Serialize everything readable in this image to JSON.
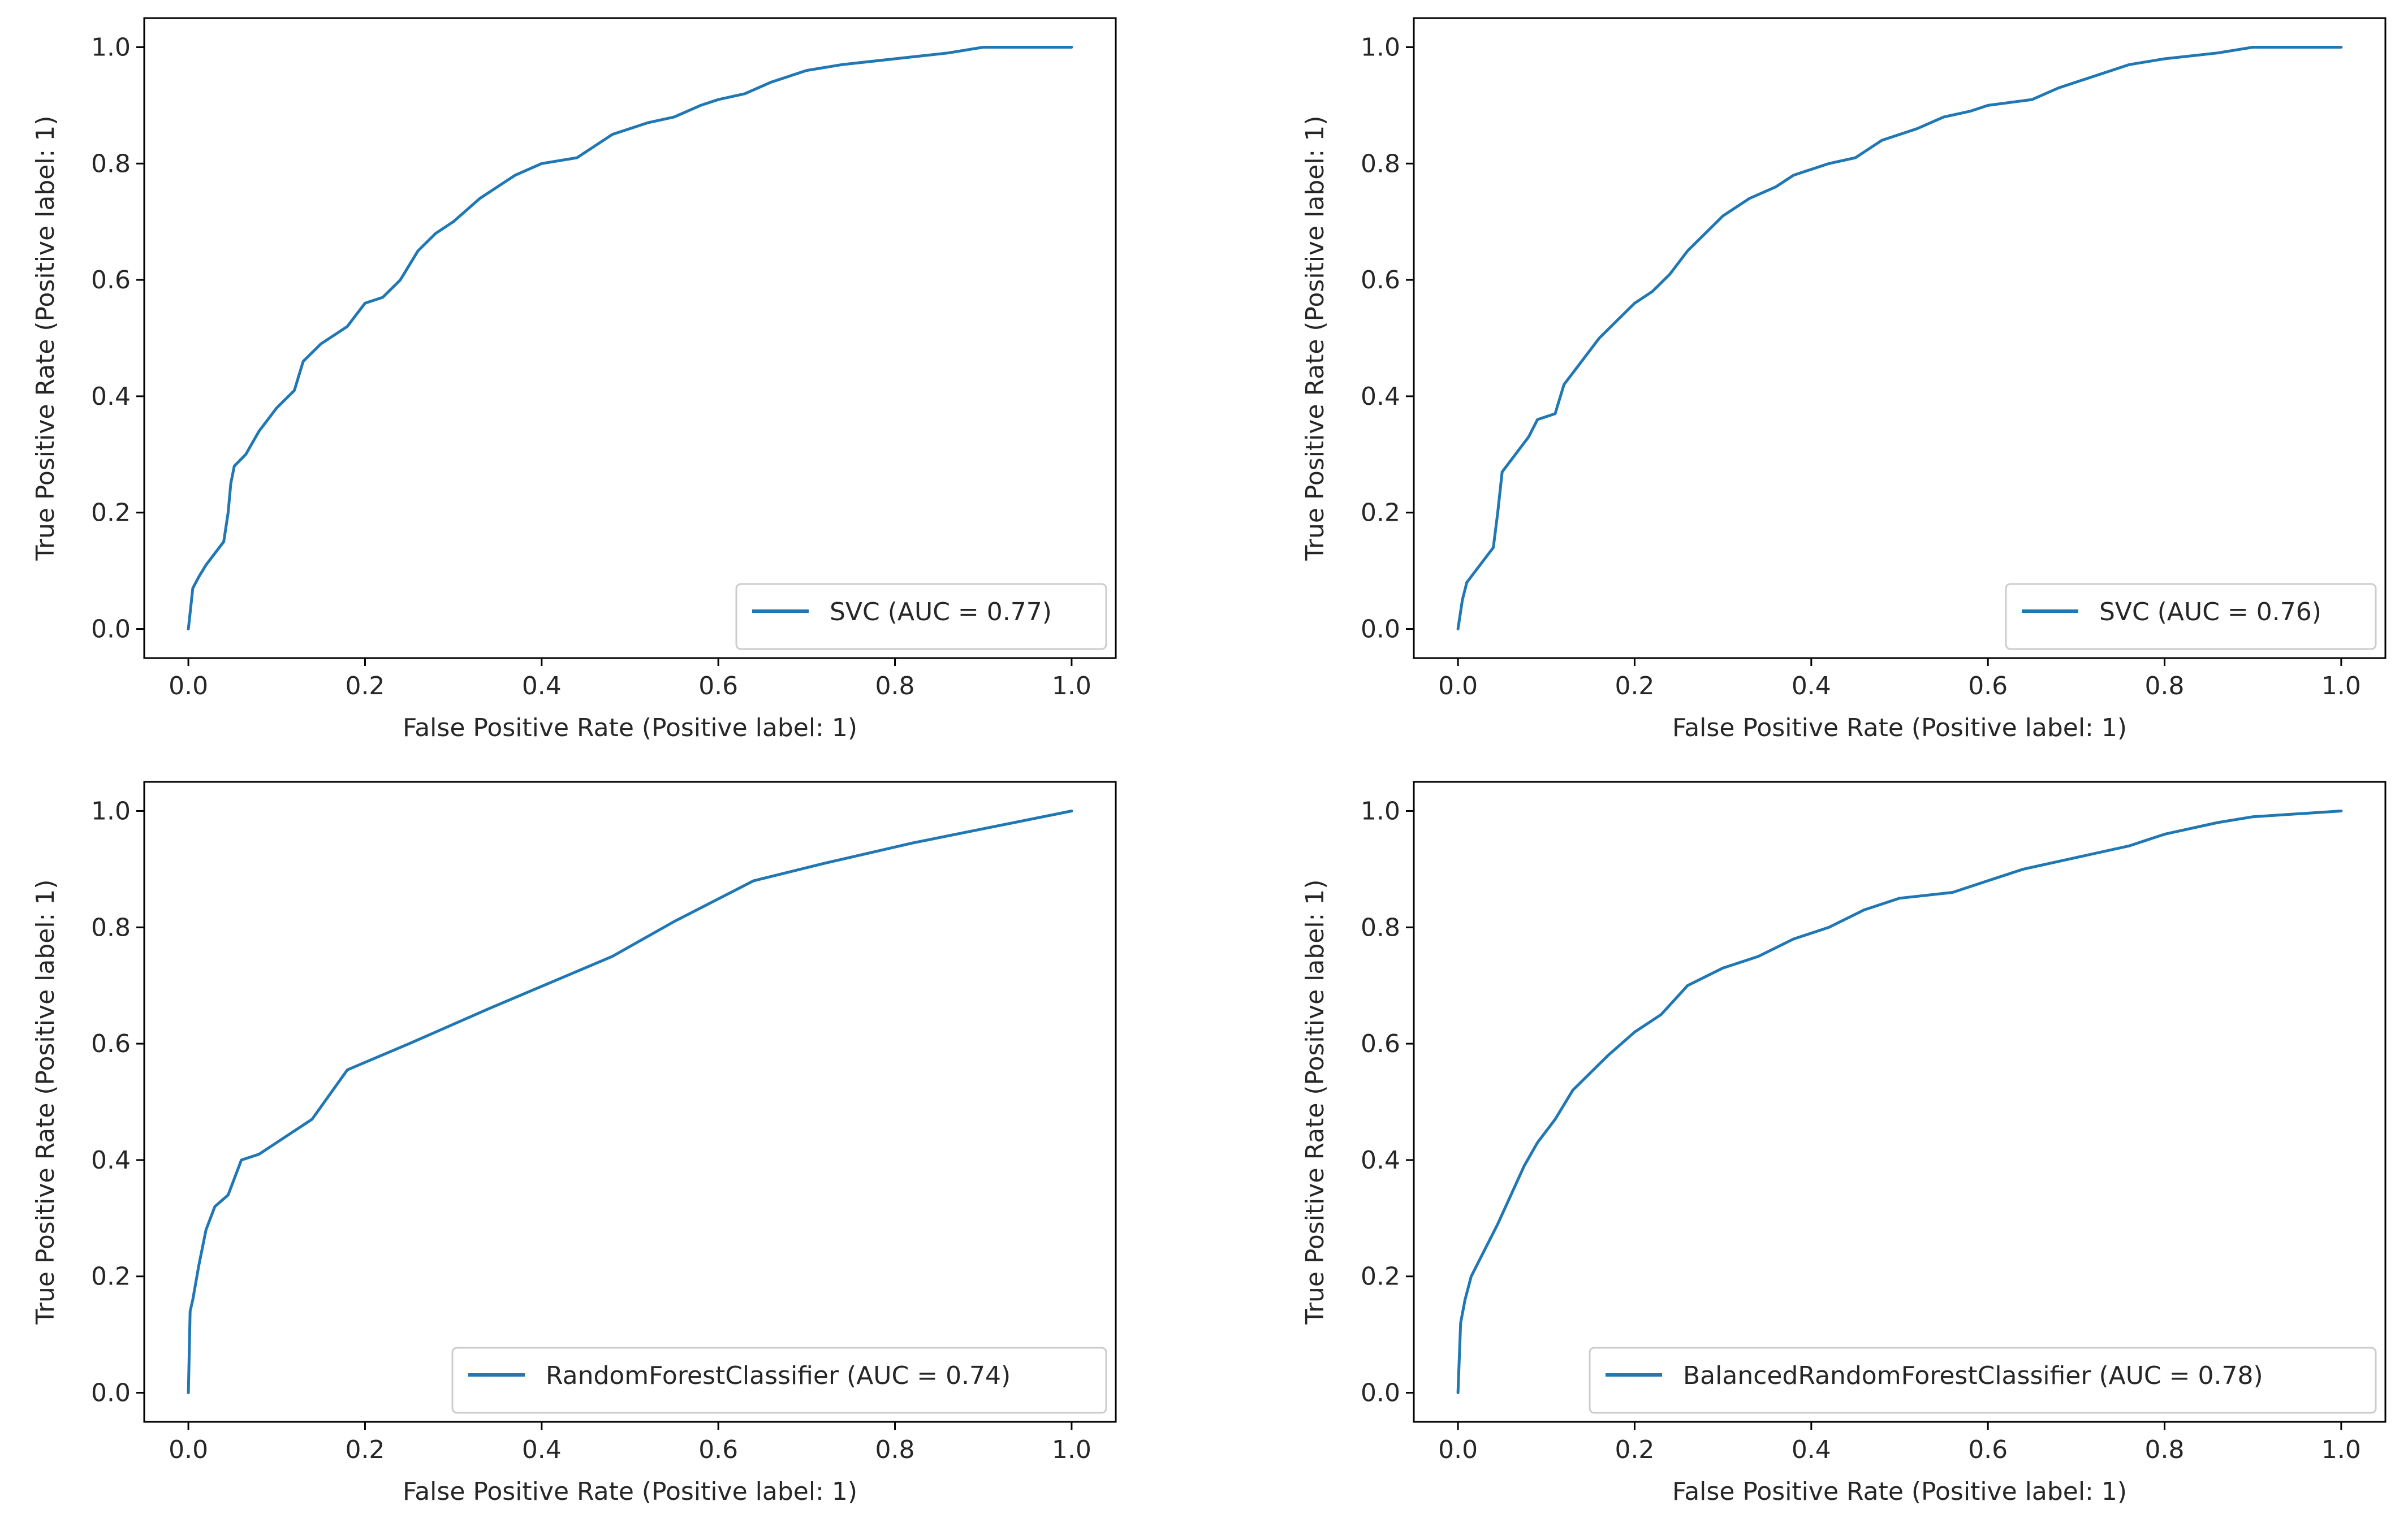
{
  "colors": {
    "series": "#1f77b4"
  },
  "chart_data": [
    {
      "type": "line",
      "xlabel": "False Positive Rate (Positive label: 1)",
      "ylabel": "True Positive Rate (Positive label: 1)",
      "xlim": [
        -0.05,
        1.05
      ],
      "ylim": [
        -0.05,
        1.05
      ],
      "xticks": [
        "0.0",
        "0.2",
        "0.4",
        "0.6",
        "0.8",
        "1.0"
      ],
      "yticks": [
        "0.0",
        "0.2",
        "0.4",
        "0.6",
        "0.8",
        "1.0"
      ],
      "legend": "SVC (AUC = 0.77)",
      "legend_loc": "lower-right",
      "series": [
        {
          "name": "SVC",
          "x": [
            0.0,
            0.005,
            0.012,
            0.02,
            0.03,
            0.04,
            0.045,
            0.048,
            0.052,
            0.065,
            0.08,
            0.1,
            0.12,
            0.13,
            0.15,
            0.18,
            0.19,
            0.2,
            0.22,
            0.24,
            0.26,
            0.28,
            0.3,
            0.33,
            0.35,
            0.37,
            0.4,
            0.44,
            0.46,
            0.48,
            0.5,
            0.52,
            0.55,
            0.58,
            0.6,
            0.63,
            0.66,
            0.7,
            0.74,
            0.8,
            0.86,
            0.9,
            1.0
          ],
          "y": [
            0.0,
            0.07,
            0.09,
            0.11,
            0.13,
            0.15,
            0.2,
            0.25,
            0.28,
            0.3,
            0.34,
            0.38,
            0.41,
            0.46,
            0.49,
            0.52,
            0.54,
            0.56,
            0.57,
            0.6,
            0.65,
            0.68,
            0.7,
            0.74,
            0.76,
            0.78,
            0.8,
            0.81,
            0.83,
            0.85,
            0.86,
            0.87,
            0.88,
            0.9,
            0.91,
            0.92,
            0.94,
            0.96,
            0.97,
            0.98,
            0.99,
            1.0,
            1.0
          ]
        }
      ]
    },
    {
      "type": "line",
      "xlabel": "False Positive Rate (Positive label: 1)",
      "ylabel": "True Positive Rate (Positive label: 1)",
      "xlim": [
        -0.05,
        1.05
      ],
      "ylim": [
        -0.05,
        1.05
      ],
      "xticks": [
        "0.0",
        "0.2",
        "0.4",
        "0.6",
        "0.8",
        "1.0"
      ],
      "yticks": [
        "0.0",
        "0.2",
        "0.4",
        "0.6",
        "0.8",
        "1.0"
      ],
      "legend": "SVC (AUC = 0.76)",
      "legend_loc": "lower-right",
      "series": [
        {
          "name": "SVC",
          "x": [
            0.0,
            0.005,
            0.01,
            0.02,
            0.03,
            0.04,
            0.045,
            0.05,
            0.06,
            0.07,
            0.08,
            0.09,
            0.11,
            0.12,
            0.14,
            0.16,
            0.18,
            0.2,
            0.22,
            0.24,
            0.26,
            0.28,
            0.3,
            0.33,
            0.36,
            0.38,
            0.42,
            0.45,
            0.48,
            0.52,
            0.55,
            0.58,
            0.6,
            0.65,
            0.68,
            0.72,
            0.76,
            0.8,
            0.86,
            0.9,
            1.0
          ],
          "y": [
            0.0,
            0.05,
            0.08,
            0.1,
            0.12,
            0.14,
            0.2,
            0.27,
            0.29,
            0.31,
            0.33,
            0.36,
            0.37,
            0.42,
            0.46,
            0.5,
            0.53,
            0.56,
            0.58,
            0.61,
            0.65,
            0.68,
            0.71,
            0.74,
            0.76,
            0.78,
            0.8,
            0.81,
            0.84,
            0.86,
            0.88,
            0.89,
            0.9,
            0.91,
            0.93,
            0.95,
            0.97,
            0.98,
            0.99,
            1.0,
            1.0
          ]
        }
      ]
    },
    {
      "type": "line",
      "xlabel": "False Positive Rate (Positive label: 1)",
      "ylabel": "True Positive Rate (Positive label: 1)",
      "xlim": [
        -0.05,
        1.05
      ],
      "ylim": [
        -0.05,
        1.05
      ],
      "xticks": [
        "0.0",
        "0.2",
        "0.4",
        "0.6",
        "0.8",
        "1.0"
      ],
      "yticks": [
        "0.0",
        "0.2",
        "0.4",
        "0.6",
        "0.8",
        "1.0"
      ],
      "legend": "RandomForestClassifier (AUC = 0.74)",
      "legend_loc": "lower-right",
      "series": [
        {
          "name": "RandomForestClassifier",
          "x": [
            0.0,
            0.002,
            0.005,
            0.012,
            0.02,
            0.03,
            0.045,
            0.06,
            0.08,
            0.14,
            0.18,
            0.25,
            0.34,
            0.48,
            0.55,
            0.64,
            0.72,
            0.82,
            1.0
          ],
          "y": [
            0.0,
            0.14,
            0.16,
            0.22,
            0.28,
            0.32,
            0.34,
            0.4,
            0.41,
            0.47,
            0.555,
            0.6,
            0.66,
            0.75,
            0.81,
            0.88,
            0.91,
            0.945,
            1.0
          ]
        }
      ]
    },
    {
      "type": "line",
      "xlabel": "False Positive Rate (Positive label: 1)",
      "ylabel": "True Positive Rate (Positive label: 1)",
      "xlim": [
        -0.05,
        1.05
      ],
      "ylim": [
        -0.05,
        1.05
      ],
      "xticks": [
        "0.0",
        "0.2",
        "0.4",
        "0.6",
        "0.8",
        "1.0"
      ],
      "yticks": [
        "0.0",
        "0.2",
        "0.4",
        "0.6",
        "0.8",
        "1.0"
      ],
      "legend": "BalancedRandomForestClassifier (AUC = 0.78)",
      "legend_loc": "lower-right",
      "series": [
        {
          "name": "BalancedRandomForestClassifier",
          "x": [
            0.0,
            0.003,
            0.008,
            0.015,
            0.025,
            0.035,
            0.045,
            0.06,
            0.075,
            0.09,
            0.11,
            0.13,
            0.15,
            0.17,
            0.2,
            0.23,
            0.26,
            0.3,
            0.34,
            0.38,
            0.42,
            0.46,
            0.5,
            0.56,
            0.6,
            0.64,
            0.7,
            0.76,
            0.8,
            0.86,
            0.9,
            1.0
          ],
          "y": [
            0.0,
            0.12,
            0.16,
            0.2,
            0.23,
            0.26,
            0.29,
            0.34,
            0.39,
            0.43,
            0.47,
            0.52,
            0.55,
            0.58,
            0.62,
            0.65,
            0.7,
            0.73,
            0.75,
            0.78,
            0.8,
            0.83,
            0.85,
            0.86,
            0.88,
            0.9,
            0.92,
            0.94,
            0.96,
            0.98,
            0.99,
            1.0
          ]
        }
      ]
    }
  ]
}
